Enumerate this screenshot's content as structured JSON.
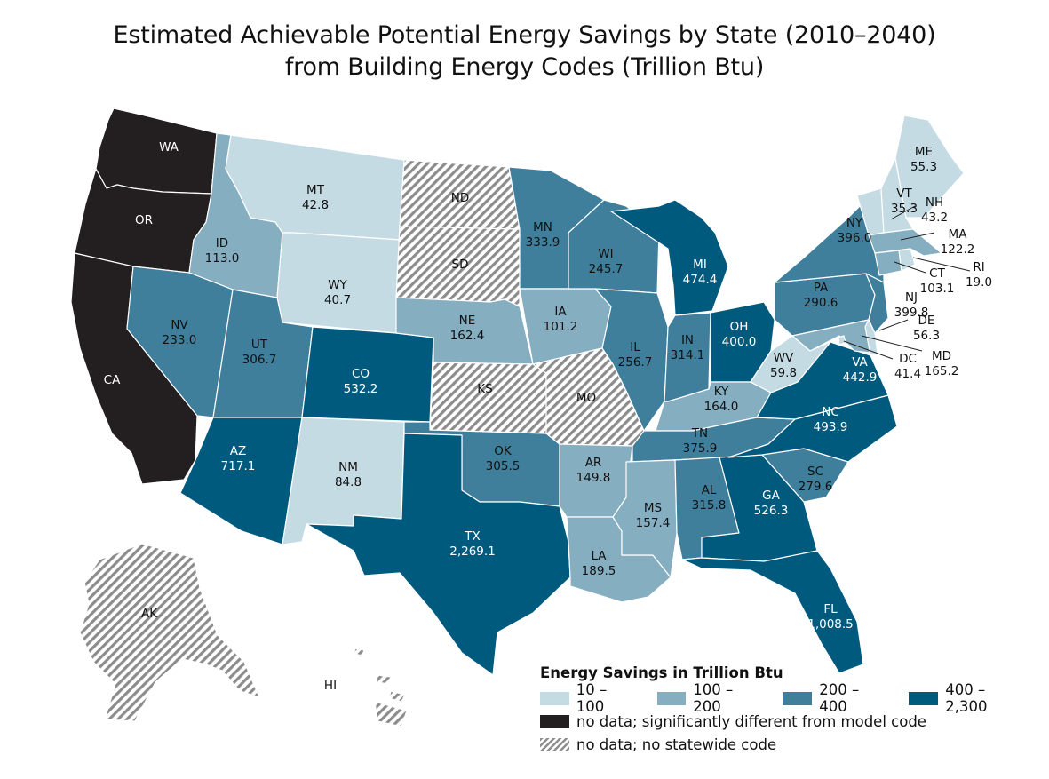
{
  "title": {
    "line1": "Estimated Achievable Potential Energy Savings by State (2010–2040)",
    "line2": "from Building Energy Codes (Trillion Btu)"
  },
  "colors": {
    "bin1": "#c5dbe4",
    "bin2": "#85aec1",
    "bin3": "#3f7f9c",
    "bin4": "#005a7e",
    "nodata": "#231f20",
    "nocode": "hatched"
  },
  "states": [
    {
      "id": "WA",
      "label": "WA",
      "value": "",
      "category": "nodata"
    },
    {
      "id": "OR",
      "label": "OR",
      "value": "",
      "category": "nodata"
    },
    {
      "id": "CA",
      "label": "CA",
      "value": "",
      "category": "nodata"
    },
    {
      "id": "ID",
      "label": "ID",
      "value": "113.0",
      "category": "bin2"
    },
    {
      "id": "MT",
      "label": "MT",
      "value": "42.8",
      "category": "bin1"
    },
    {
      "id": "WY",
      "label": "WY",
      "value": "40.7",
      "category": "bin1"
    },
    {
      "id": "NV",
      "label": "NV",
      "value": "233.0",
      "category": "bin3"
    },
    {
      "id": "UT",
      "label": "UT",
      "value": "306.7",
      "category": "bin3"
    },
    {
      "id": "CO",
      "label": "CO",
      "value": "532.2",
      "category": "bin4"
    },
    {
      "id": "AZ",
      "label": "AZ",
      "value": "717.1",
      "category": "bin4"
    },
    {
      "id": "NM",
      "label": "NM",
      "value": "84.8",
      "category": "bin1"
    },
    {
      "id": "ND",
      "label": "ND",
      "value": "",
      "category": "nocode"
    },
    {
      "id": "SD",
      "label": "SD",
      "value": "",
      "category": "nocode"
    },
    {
      "id": "NE",
      "label": "NE",
      "value": "162.4",
      "category": "bin2"
    },
    {
      "id": "KS",
      "label": "KS",
      "value": "",
      "category": "nocode"
    },
    {
      "id": "OK",
      "label": "OK",
      "value": "305.5",
      "category": "bin3"
    },
    {
      "id": "TX",
      "label": "TX",
      "value": "2,269.1",
      "category": "bin4"
    },
    {
      "id": "MN",
      "label": "MN",
      "value": "333.9",
      "category": "bin3"
    },
    {
      "id": "IA",
      "label": "IA",
      "value": "101.2",
      "category": "bin2"
    },
    {
      "id": "MO",
      "label": "MO",
      "value": "",
      "category": "nocode"
    },
    {
      "id": "AR",
      "label": "AR",
      "value": "149.8",
      "category": "bin2"
    },
    {
      "id": "LA",
      "label": "LA",
      "value": "189.5",
      "category": "bin2"
    },
    {
      "id": "WI",
      "label": "WI",
      "value": "245.7",
      "category": "bin3"
    },
    {
      "id": "IL",
      "label": "IL",
      "value": "256.7",
      "category": "bin3"
    },
    {
      "id": "MI",
      "label": "MI",
      "value": "474.4",
      "category": "bin4"
    },
    {
      "id": "IN",
      "label": "IN",
      "value": "314.1",
      "category": "bin3"
    },
    {
      "id": "OH",
      "label": "OH",
      "value": "400.0",
      "category": "bin4"
    },
    {
      "id": "KY",
      "label": "KY",
      "value": "164.0",
      "category": "bin2"
    },
    {
      "id": "TN",
      "label": "TN",
      "value": "375.9",
      "category": "bin3"
    },
    {
      "id": "MS",
      "label": "MS",
      "value": "157.4",
      "category": "bin2"
    },
    {
      "id": "AL",
      "label": "AL",
      "value": "315.8",
      "category": "bin3"
    },
    {
      "id": "GA",
      "label": "GA",
      "value": "526.3",
      "category": "bin4"
    },
    {
      "id": "FL",
      "label": "FL",
      "value": "1,008.5",
      "category": "bin4"
    },
    {
      "id": "SC",
      "label": "SC",
      "value": "279.6",
      "category": "bin3"
    },
    {
      "id": "NC",
      "label": "NC",
      "value": "493.9",
      "category": "bin4"
    },
    {
      "id": "VA",
      "label": "VA",
      "value": "442.9",
      "category": "bin4"
    },
    {
      "id": "WV",
      "label": "WV",
      "value": "59.8",
      "category": "bin1"
    },
    {
      "id": "PA",
      "label": "PA",
      "value": "290.6",
      "category": "bin3"
    },
    {
      "id": "NY",
      "label": "NY",
      "value": "396.0",
      "category": "bin3"
    },
    {
      "id": "VT",
      "label": "VT",
      "value": "35.3",
      "category": "bin1"
    },
    {
      "id": "NH",
      "label": "NH",
      "value": "43.2",
      "category": "bin1"
    },
    {
      "id": "ME",
      "label": "ME",
      "value": "55.3",
      "category": "bin1"
    },
    {
      "id": "MA",
      "label": "MA",
      "value": "122.2",
      "category": "bin2"
    },
    {
      "id": "RI",
      "label": "RI",
      "value": "19.0",
      "category": "bin1"
    },
    {
      "id": "CT",
      "label": "CT",
      "value": "103.1",
      "category": "bin2"
    },
    {
      "id": "NJ",
      "label": "NJ",
      "value": "399.8",
      "category": "bin3"
    },
    {
      "id": "DE",
      "label": "DE",
      "value": "56.3",
      "category": "bin1"
    },
    {
      "id": "MD",
      "label": "MD",
      "value": "165.2",
      "category": "bin2"
    },
    {
      "id": "DC",
      "label": "DC",
      "value": "41.4",
      "category": "bin1"
    },
    {
      "id": "AK",
      "label": "AK",
      "value": "",
      "category": "nocode"
    },
    {
      "id": "HI",
      "label": "HI",
      "value": "",
      "category": "nocode"
    }
  ],
  "legend": {
    "title": "Energy Savings in Trillion Btu",
    "bins": [
      {
        "label": "10 – 100",
        "category": "bin1"
      },
      {
        "label": "100 – 200",
        "category": "bin2"
      },
      {
        "label": "200 – 400",
        "category": "bin3"
      },
      {
        "label": "400 – 2,300",
        "category": "bin4"
      }
    ],
    "nodata_label": "no data; significantly different from model code",
    "nocode_label": "no data; no statewide code"
  }
}
